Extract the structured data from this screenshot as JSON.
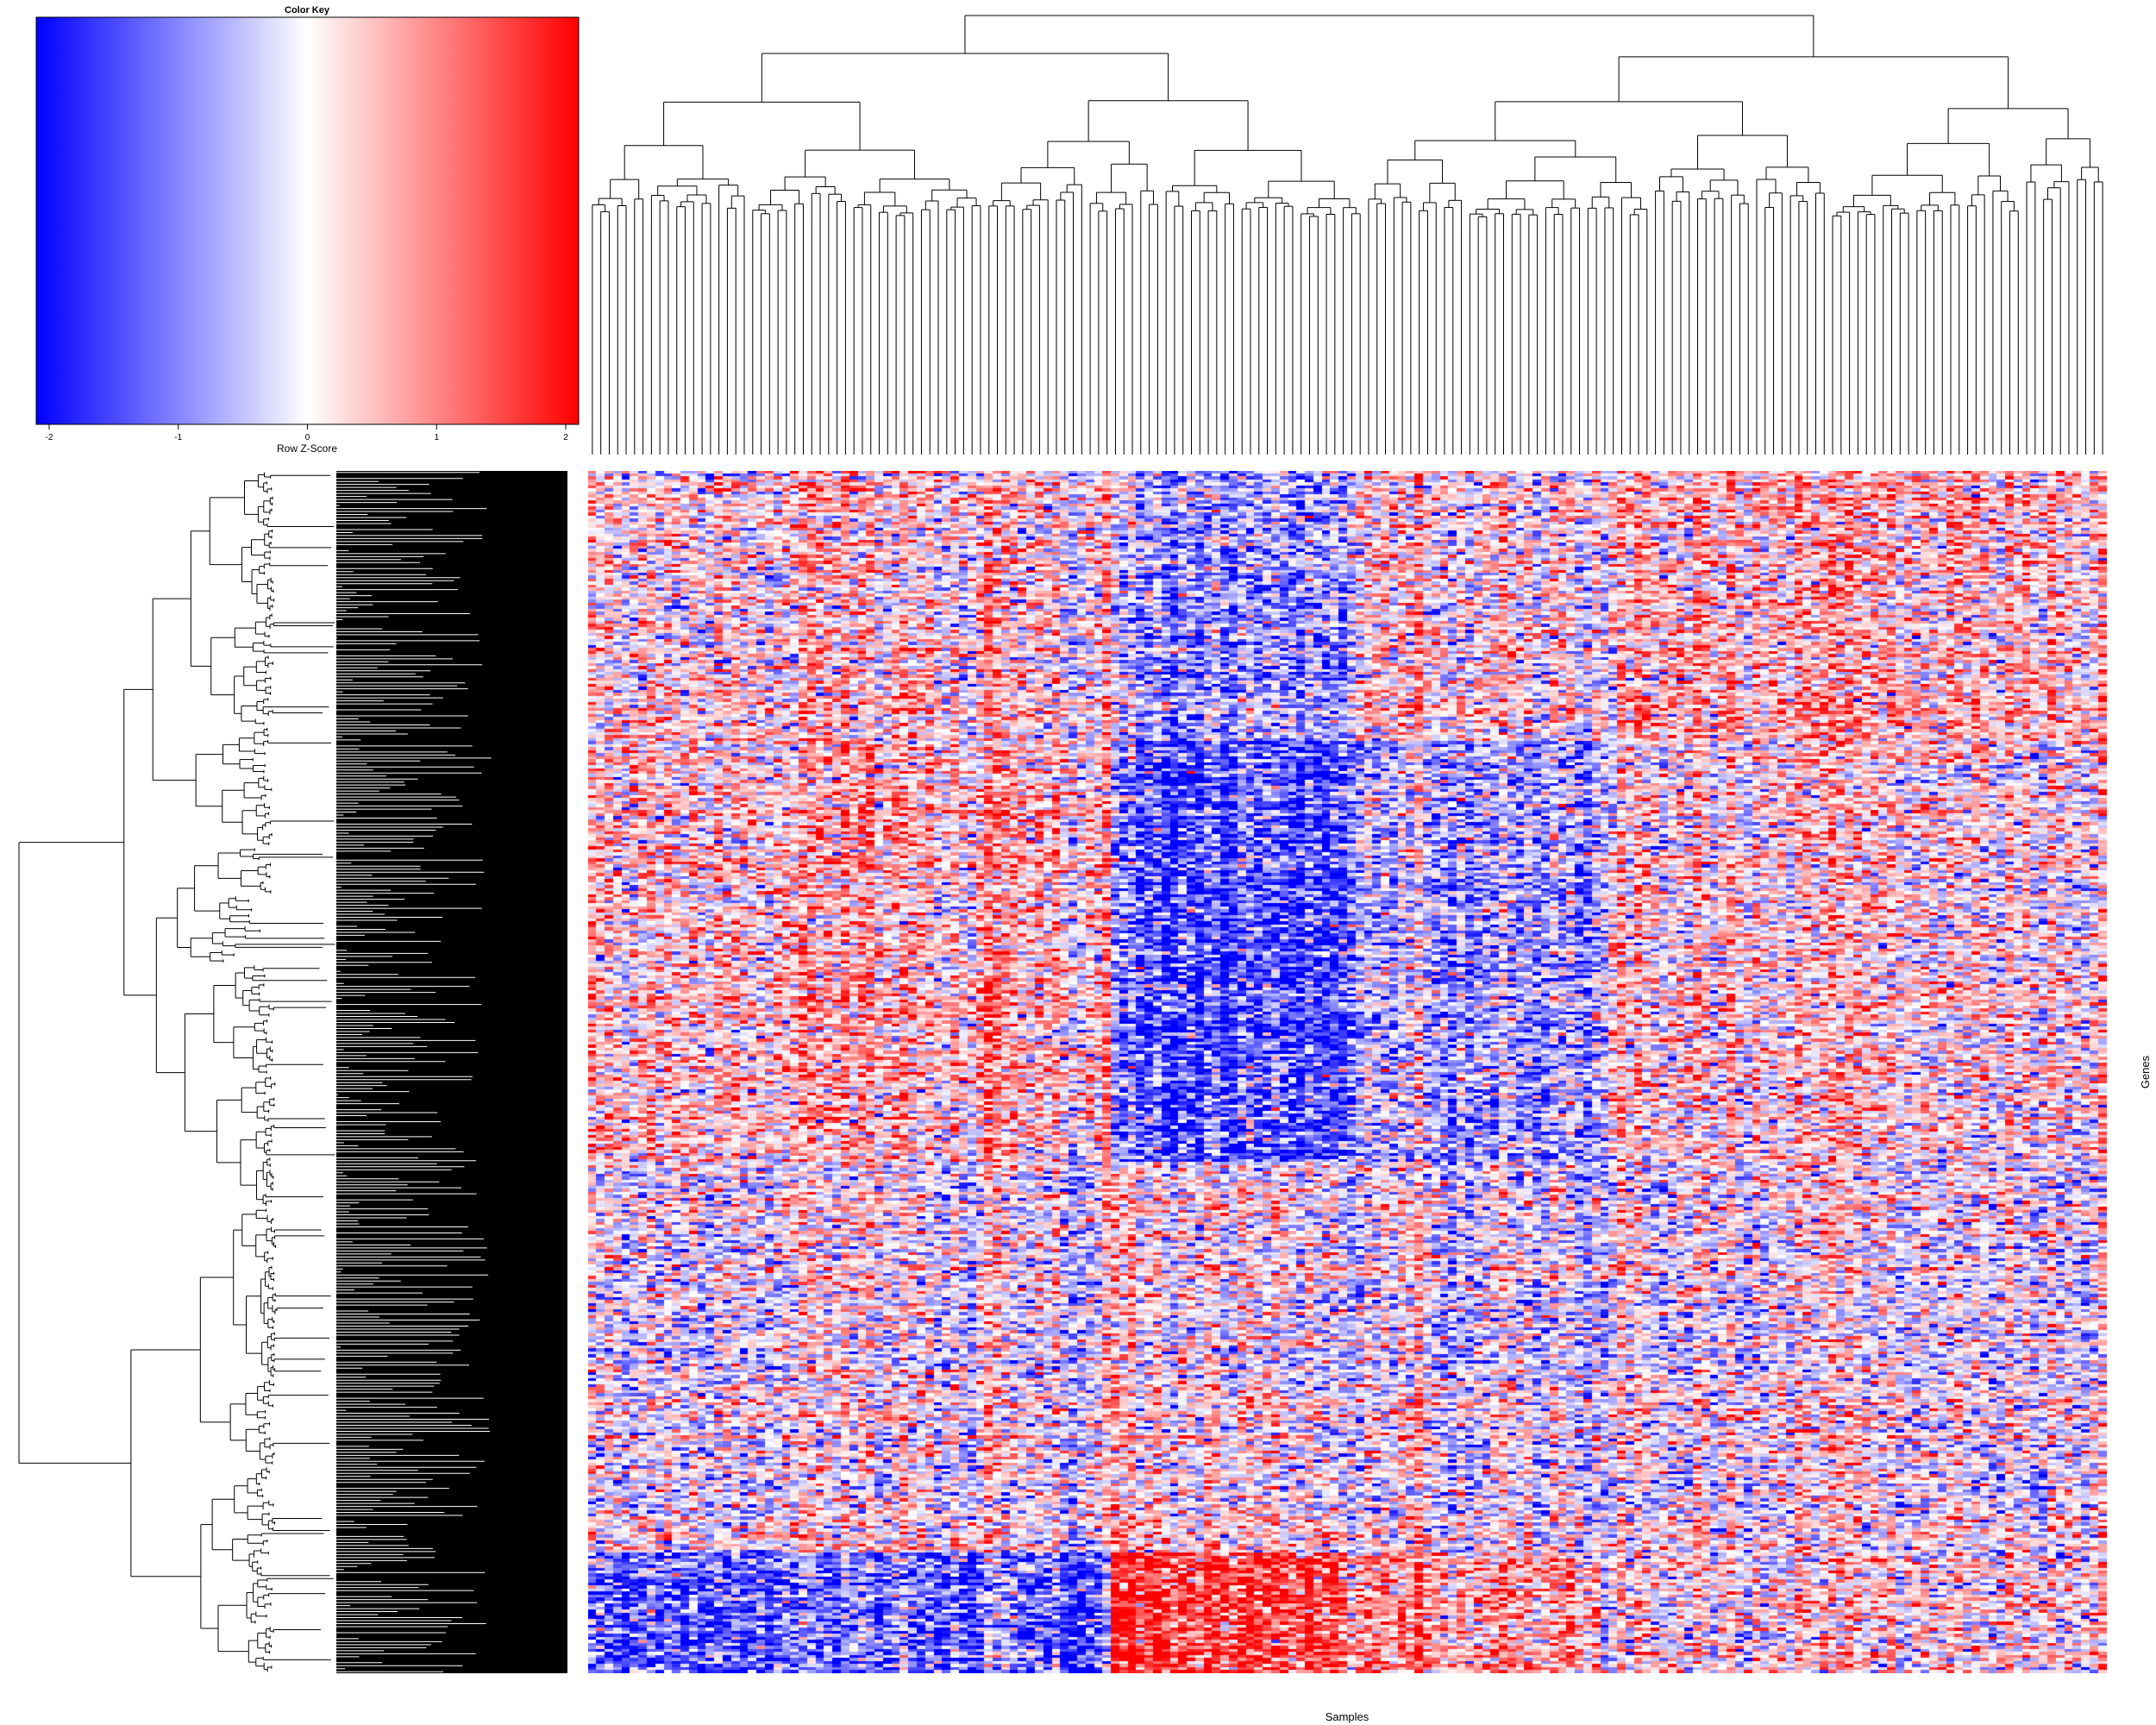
{
  "chart_data": {
    "type": "heatmap",
    "title": "",
    "xlabel": "Samples",
    "ylabel": "Genes",
    "color_key": {
      "title": "Color Key",
      "label": "Row Z-Score",
      "range": [
        -2.1,
        2.1
      ],
      "ticks": [
        "-2",
        "-1",
        "0",
        "1",
        "2"
      ],
      "tick_values": [
        -2,
        -1,
        0,
        1,
        2
      ],
      "low_color": "#0000ff",
      "mid_color": "#ffffff",
      "high_color": "#ff0000"
    },
    "n_samples": 180,
    "n_genes": 400,
    "row_dendrogram": true,
    "column_dendrogram": true,
    "grid": false,
    "legend_position": "top-left"
  }
}
